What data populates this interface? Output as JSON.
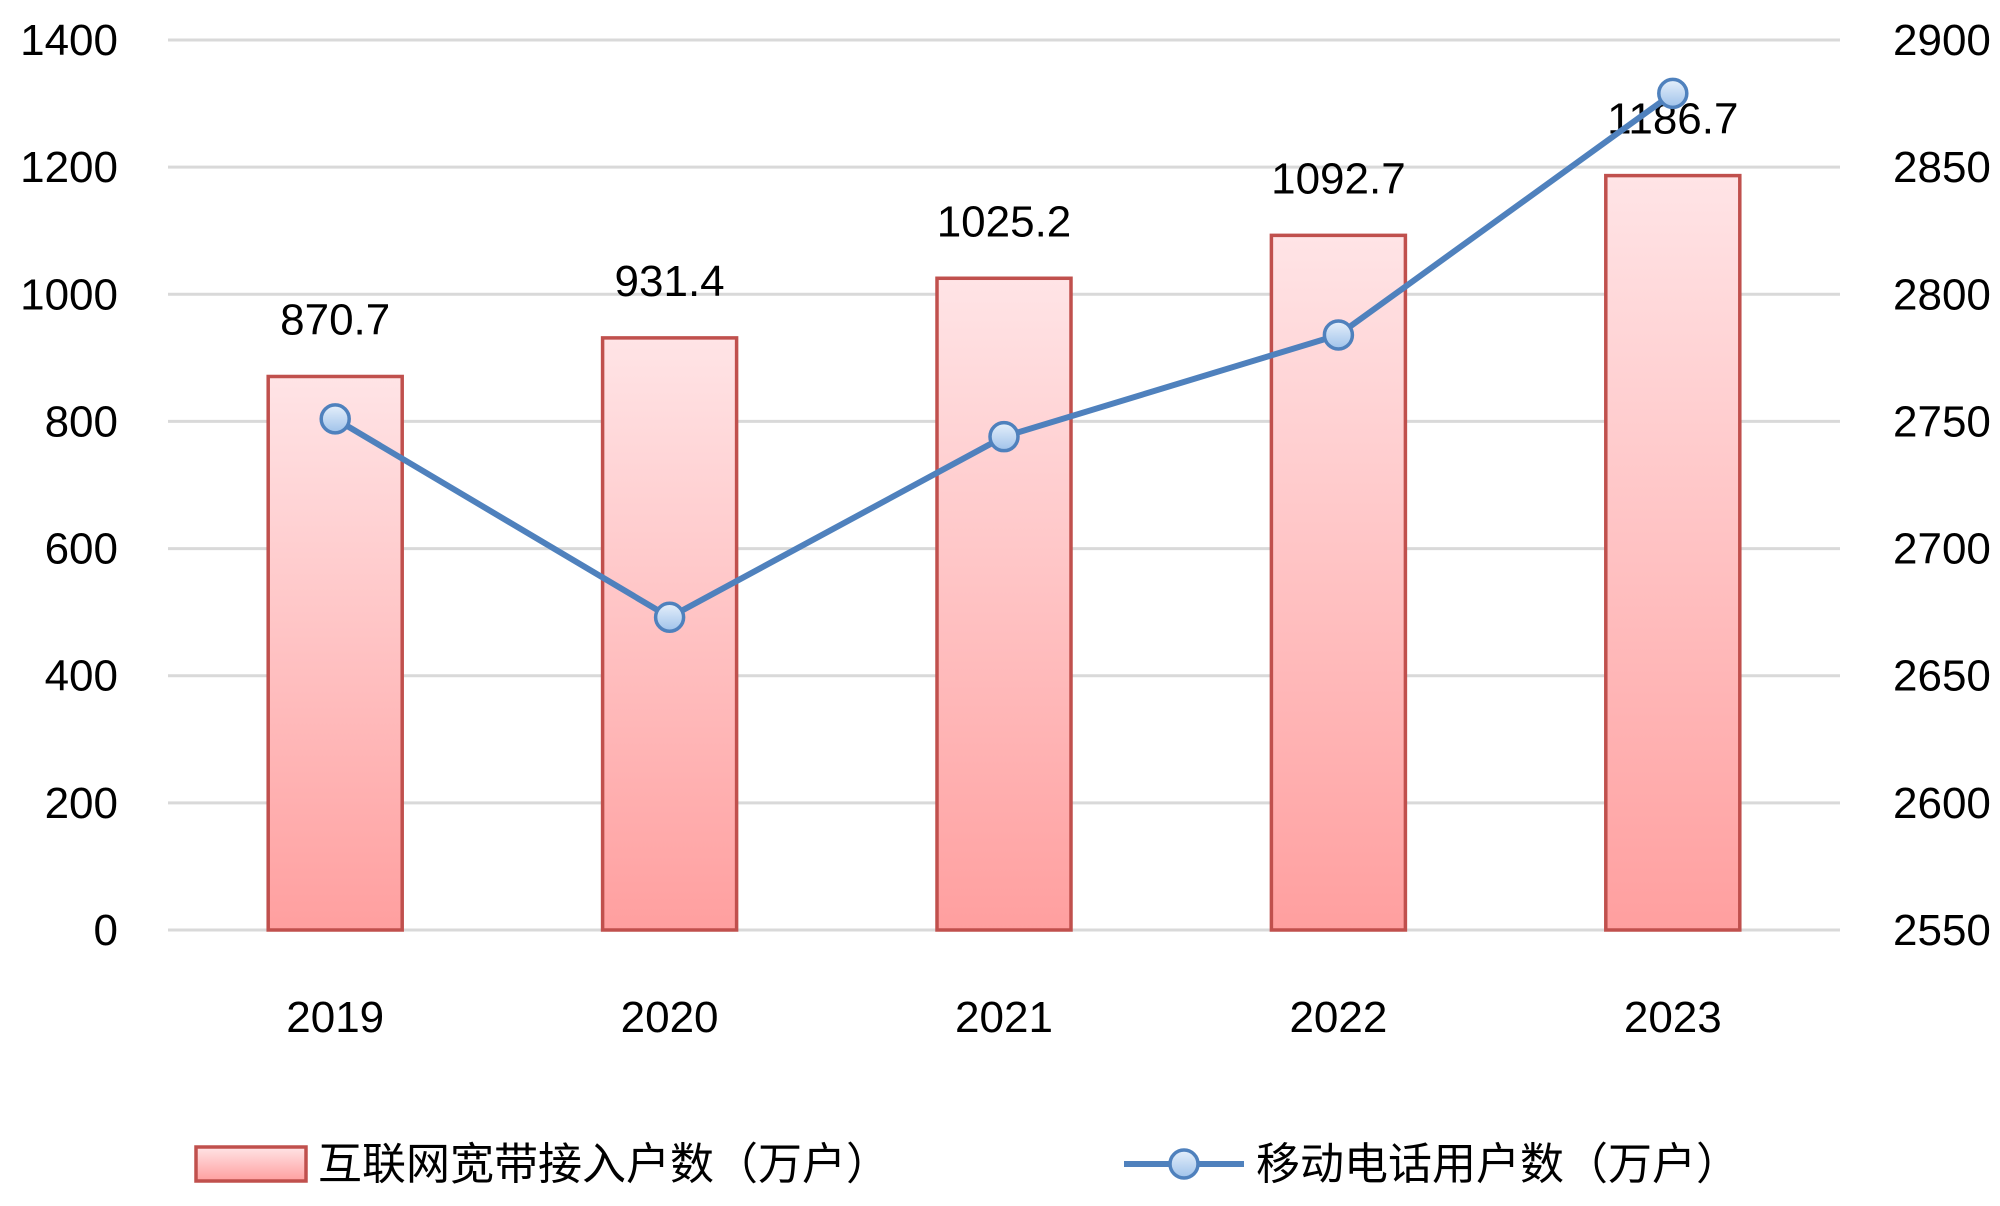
{
  "chart_data": {
    "type": "bar+line",
    "categories": [
      "2019",
      "2020",
      "2021",
      "2022",
      "2023"
    ],
    "series": [
      {
        "name": "互联网宽带接入户数（万户）",
        "type": "bar",
        "axis": "left",
        "values": [
          870.7,
          931.4,
          1025.2,
          1092.7,
          1186.7
        ],
        "data_labels": [
          "870.7",
          "931.4",
          "1025.2",
          "1092.7",
          "1186.7"
        ]
      },
      {
        "name": "移动电话用户数（万户）",
        "type": "line",
        "axis": "right",
        "values": [
          2751,
          2673,
          2744,
          2784,
          2879
        ]
      }
    ],
    "y_left": {
      "min": 0,
      "max": 1400,
      "ticks": [
        "0",
        "200",
        "400",
        "600",
        "800",
        "1000",
        "1200",
        "1400"
      ]
    },
    "y_right": {
      "min": 2550,
      "max": 2900,
      "ticks": [
        "2550",
        "2600",
        "2650",
        "2700",
        "2750",
        "2800",
        "2850",
        "2900"
      ]
    },
    "grid": true,
    "legend_position": "bottom",
    "colors": {
      "bar_fill_top": "#ffe4e6",
      "bar_fill_bottom": "#ff9f9f",
      "bar_stroke": "#c0504d",
      "line": "#4f81bd",
      "marker_fill": "#b8d3f0",
      "grid": "#d9d9d9"
    }
  }
}
